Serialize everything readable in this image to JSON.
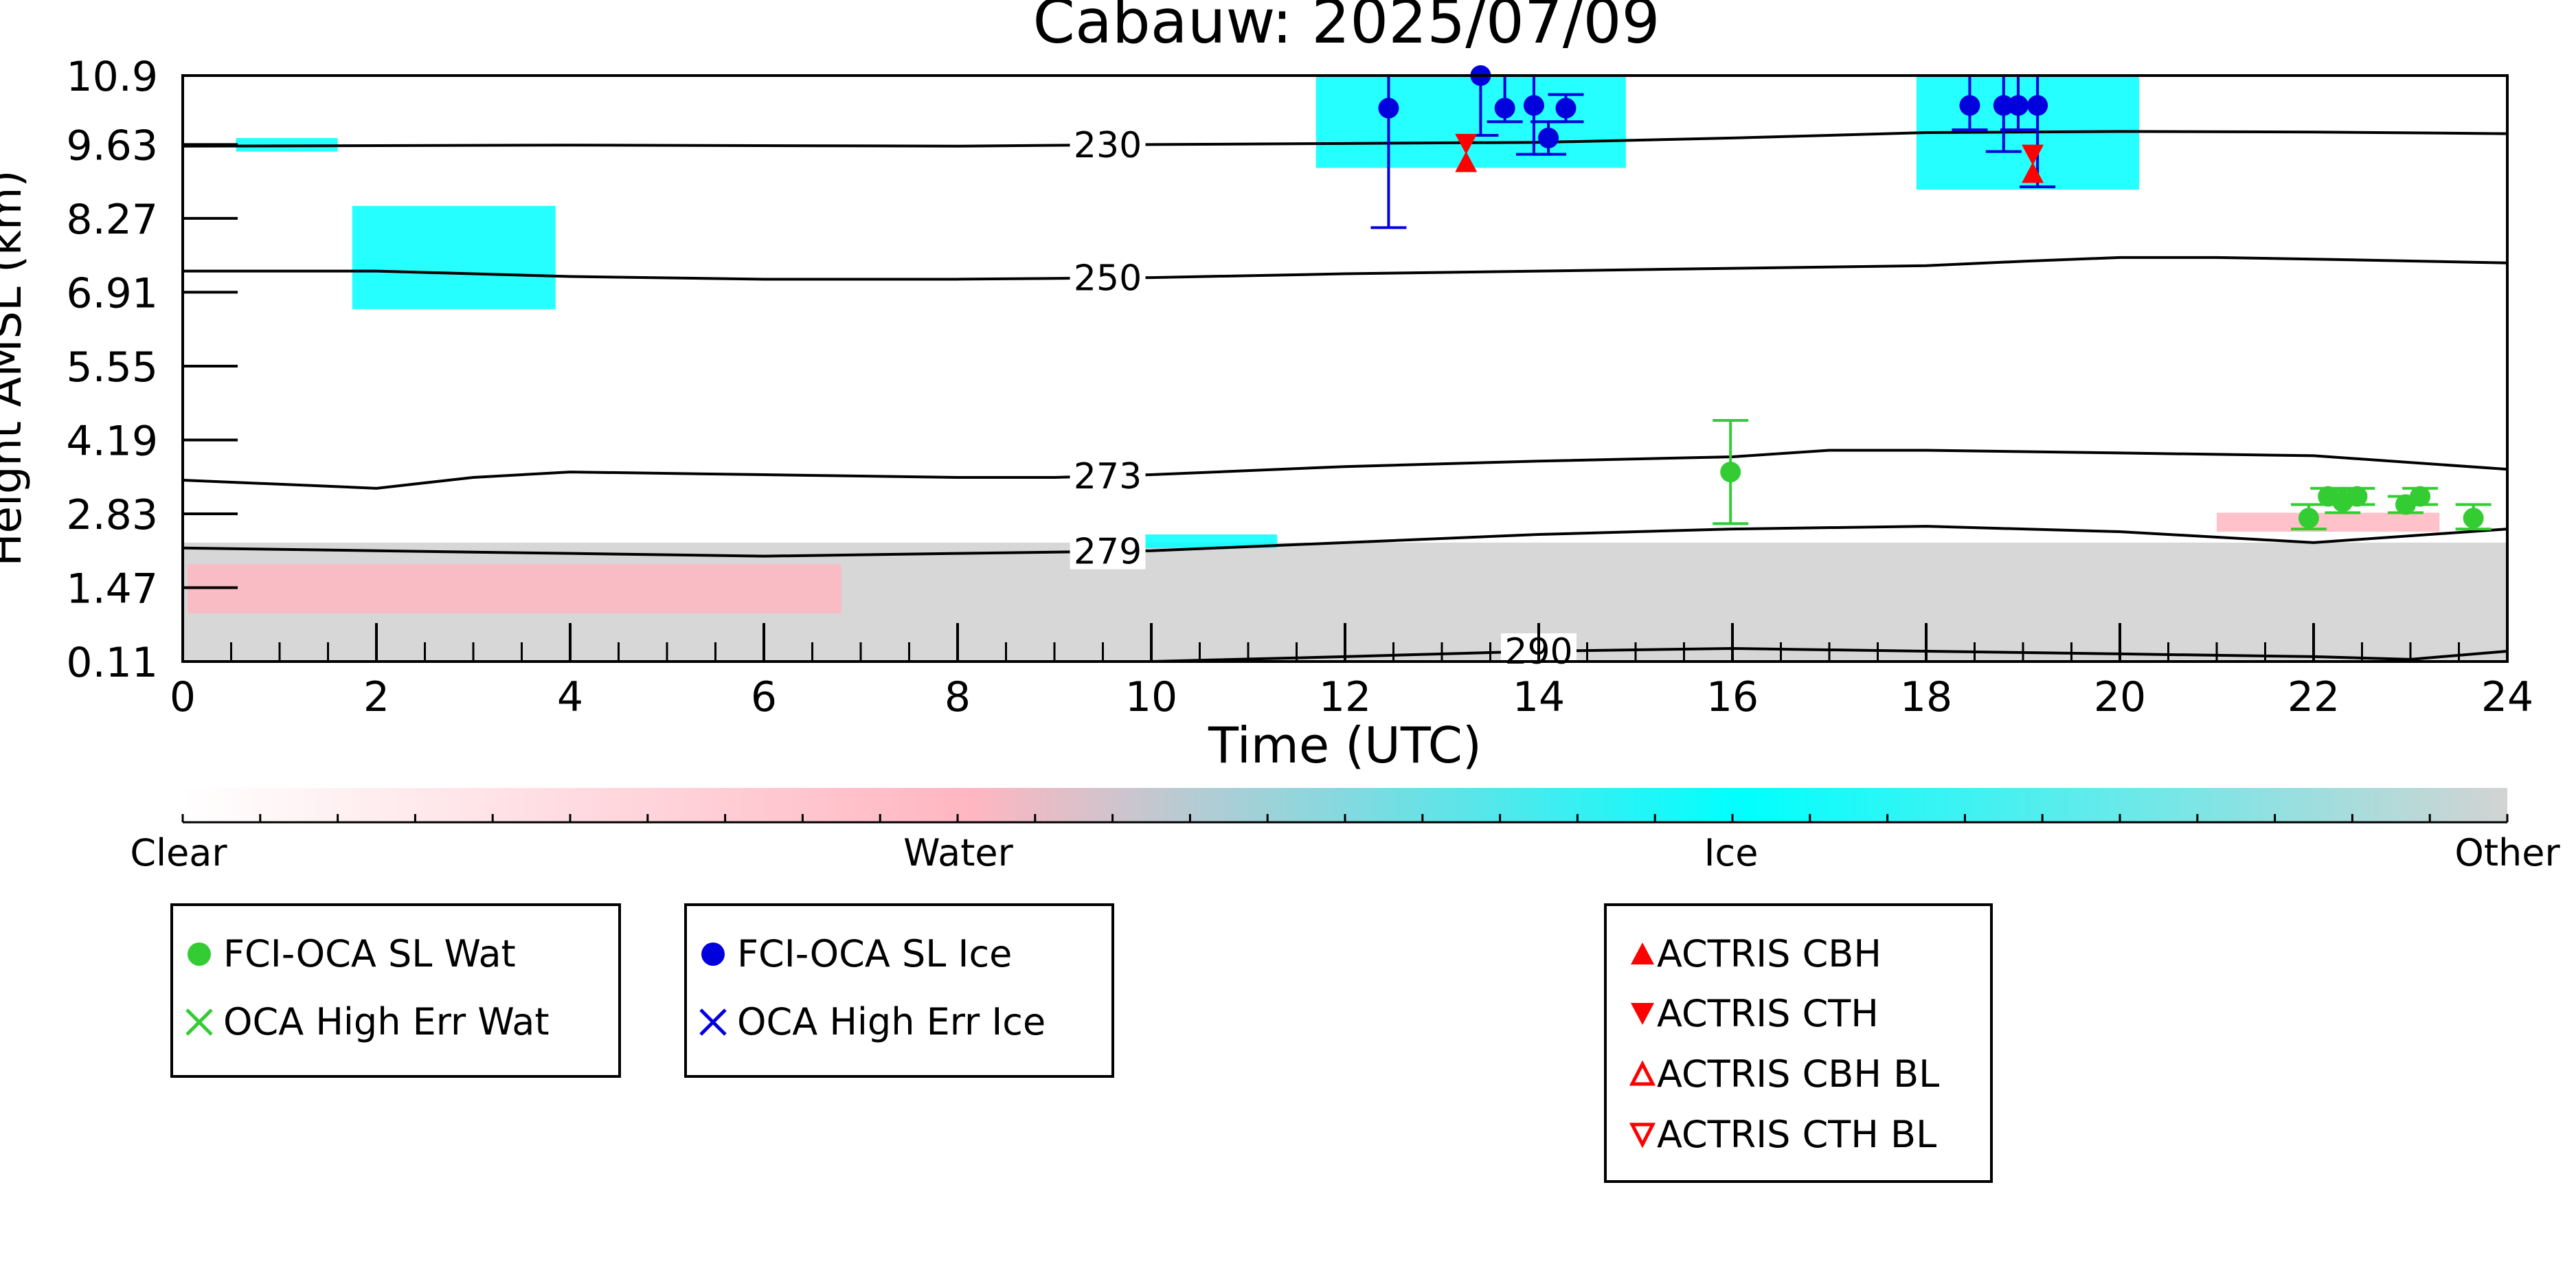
{
  "chart_data": {
    "type": "scatter",
    "title": "Cabauw: 2025/07/09",
    "xlabel": "Time (UTC)",
    "ylabel": "Height AMSL (km)",
    "xlim": [
      0,
      24
    ],
    "ylim": [
      0.11,
      10.9
    ],
    "x_ticks": [
      "0",
      "2",
      "4",
      "6",
      "8",
      "10",
      "12",
      "14",
      "16",
      "18",
      "20",
      "22",
      "24"
    ],
    "y_ticks": [
      "0.11",
      "1.47",
      "2.83",
      "4.19",
      "5.55",
      "6.91",
      "8.27",
      "9.63",
      "10.9"
    ],
    "grid": false,
    "colorbar": {
      "labels": [
        "Clear",
        "Water",
        "Ice",
        "Other"
      ],
      "colors": [
        "#ffffff",
        "#ffb6c1",
        "#00ffff",
        "#d3d3d3"
      ]
    },
    "temperature_contours": [
      {
        "label": "230",
        "x": [
          0,
          4,
          8,
          10,
          12,
          14,
          16,
          17,
          18,
          20,
          22,
          24
        ],
        "y": [
          9.6,
          9.62,
          9.6,
          9.63,
          9.65,
          9.67,
          9.75,
          9.8,
          9.85,
          9.87,
          9.86,
          9.83
        ]
      },
      {
        "label": "250",
        "x": [
          0,
          2,
          4,
          6,
          8,
          10,
          12,
          14,
          16,
          18,
          19,
          20,
          21,
          22,
          24
        ],
        "y": [
          7.3,
          7.3,
          7.2,
          7.15,
          7.15,
          7.18,
          7.25,
          7.3,
          7.35,
          7.4,
          7.48,
          7.55,
          7.55,
          7.52,
          7.45
        ]
      },
      {
        "label": "273",
        "x": [
          0,
          2,
          3,
          4,
          6,
          8,
          9,
          10,
          12,
          14,
          16,
          17,
          18,
          20,
          22,
          24
        ],
        "y": [
          3.45,
          3.3,
          3.5,
          3.6,
          3.55,
          3.5,
          3.5,
          3.55,
          3.7,
          3.8,
          3.88,
          4.0,
          4.0,
          3.95,
          3.9,
          3.65
        ]
      },
      {
        "label": "279",
        "x": [
          0,
          2,
          4,
          6,
          8,
          10,
          12,
          14,
          16,
          18,
          20,
          22,
          24
        ],
        "y": [
          2.2,
          2.15,
          2.1,
          2.05,
          2.1,
          2.15,
          2.3,
          2.45,
          2.55,
          2.6,
          2.5,
          2.3,
          2.55
        ]
      },
      {
        "label": "290",
        "x": [
          10,
          12,
          14,
          16,
          18,
          20,
          22,
          23,
          24
        ],
        "y": [
          0.11,
          0.2,
          0.3,
          0.35,
          0.3,
          0.25,
          0.2,
          0.15,
          0.3
        ]
      }
    ],
    "series": [
      {
        "name": "FCI-OCA SL Wat",
        "color": "#33cc33",
        "marker": "circle",
        "points": [
          {
            "x": 15.98,
            "y": 3.6,
            "ylow": 2.65,
            "yhigh": 4.55
          },
          {
            "x": 21.95,
            "y": 2.75,
            "ylow": 2.55,
            "yhigh": 3.0
          },
          {
            "x": 22.15,
            "y": 3.15,
            "ylow": 3.0,
            "yhigh": 3.3
          },
          {
            "x": 22.3,
            "y": 3.05,
            "ylow": 2.85,
            "yhigh": 3.25
          },
          {
            "x": 22.45,
            "y": 3.15,
            "ylow": 3.0,
            "yhigh": 3.3
          },
          {
            "x": 22.95,
            "y": 3.0,
            "ylow": 2.85,
            "yhigh": 3.15
          },
          {
            "x": 23.1,
            "y": 3.15,
            "ylow": 3.0,
            "yhigh": 3.3
          },
          {
            "x": 23.65,
            "y": 2.75,
            "ylow": 2.55,
            "yhigh": 3.0
          }
        ]
      },
      {
        "name": "OCA High Err Wat",
        "color": "#33cc33",
        "marker": "x",
        "points": []
      },
      {
        "name": "FCI-OCA SL Ice",
        "color": "#0000dd",
        "marker": "circle",
        "points": [
          {
            "x": 12.45,
            "y": 10.3,
            "ylow": 8.1,
            "yhigh": 10.9
          },
          {
            "x": 13.4,
            "y": 10.9,
            "ylow": 9.8,
            "yhigh": 10.9
          },
          {
            "x": 13.65,
            "y": 10.3,
            "ylow": 10.05,
            "yhigh": 10.9
          },
          {
            "x": 13.95,
            "y": 10.35,
            "ylow": 9.45,
            "yhigh": 10.9
          },
          {
            "x": 14.1,
            "y": 9.75,
            "ylow": 9.45,
            "yhigh": 10.05
          },
          {
            "x": 14.28,
            "y": 10.3,
            "ylow": 10.05,
            "yhigh": 10.55
          },
          {
            "x": 18.45,
            "y": 10.35,
            "ylow": 9.9,
            "yhigh": 10.9
          },
          {
            "x": 18.8,
            "y": 10.35,
            "ylow": 9.5,
            "yhigh": 10.9
          },
          {
            "x": 18.95,
            "y": 10.35,
            "ylow": 9.9,
            "yhigh": 10.9
          },
          {
            "x": 19.15,
            "y": 10.35,
            "ylow": 8.85,
            "yhigh": 10.9
          }
        ]
      },
      {
        "name": "OCA High Err Ice",
        "color": "#0000dd",
        "marker": "x",
        "points": []
      },
      {
        "name": "ACTRIS CBH",
        "color": "#ff0000",
        "marker": "triangle-up",
        "points": [
          {
            "x": 13.25,
            "y": 9.3
          },
          {
            "x": 19.1,
            "y": 9.1
          }
        ]
      },
      {
        "name": "ACTRIS CTH",
        "color": "#ff0000",
        "marker": "triangle-down",
        "points": [
          {
            "x": 13.25,
            "y": 9.65
          },
          {
            "x": 19.1,
            "y": 9.45
          }
        ]
      },
      {
        "name": "ACTRIS CBH BL",
        "color": "#ff0000",
        "marker": "triangle-up-open",
        "points": []
      },
      {
        "name": "ACTRIS CTH BL",
        "color": "#ff0000",
        "marker": "triangle-down-open",
        "points": []
      }
    ],
    "cloud_regions": [
      {
        "phase": "Ice",
        "x_start": 0.55,
        "x_end": 1.6,
        "y_low": 9.5,
        "y_high": 9.75
      },
      {
        "phase": "Ice",
        "x_start": 1.75,
        "x_end": 3.85,
        "y_low": 6.6,
        "y_high": 8.5
      },
      {
        "phase": "Ice",
        "x_start": 11.7,
        "x_end": 14.9,
        "y_low": 9.2,
        "y_high": 10.9
      },
      {
        "phase": "Ice",
        "x_start": 17.9,
        "x_end": 20.2,
        "y_low": 8.8,
        "y_high": 10.9
      },
      {
        "phase": "Ice",
        "x_start": 9.4,
        "x_end": 11.3,
        "y_low": 2.2,
        "y_high": 2.45
      },
      {
        "phase": "Water",
        "x_start": 0.05,
        "x_end": 6.8,
        "y_low": 1.0,
        "y_high": 1.9
      },
      {
        "phase": "Water",
        "x_start": 21.0,
        "x_end": 23.3,
        "y_low": 2.5,
        "y_high": 2.85
      },
      {
        "phase": "Other",
        "x_start": 0.0,
        "x_end": 24.0,
        "y_low": 0.11,
        "y_high": 2.3
      }
    ],
    "legends": [
      {
        "entries": [
          "FCI-OCA SL Wat",
          "OCA High Err Wat"
        ],
        "placement": "bottom-left"
      },
      {
        "entries": [
          "FCI-OCA SL Ice",
          "OCA High Err Ice"
        ],
        "placement": "bottom-center-left"
      },
      {
        "entries": [
          "ACTRIS CBH",
          "ACTRIS CTH",
          "ACTRIS CBH BL",
          "ACTRIS CTH BL"
        ],
        "placement": "bottom-center-right"
      }
    ]
  }
}
